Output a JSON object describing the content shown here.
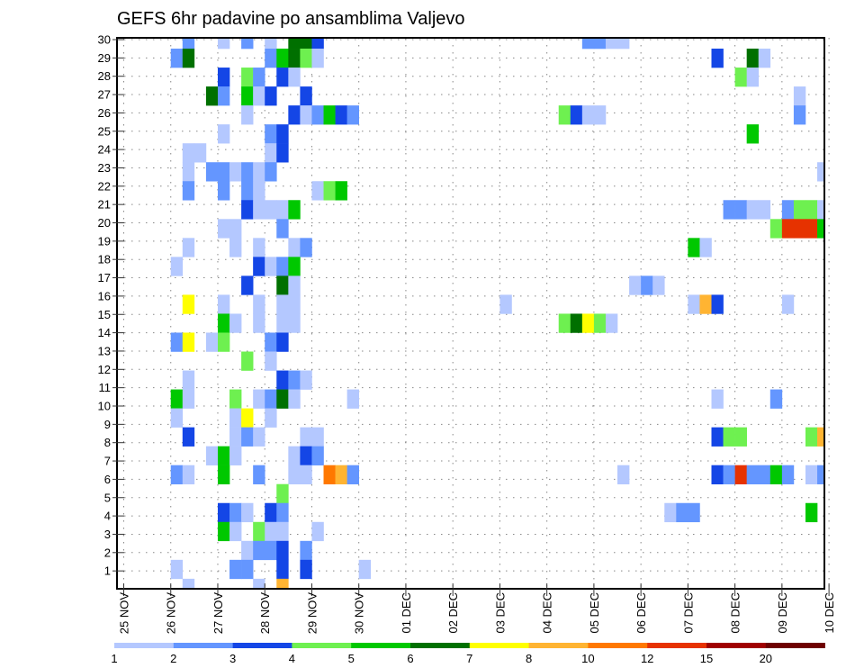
{
  "chart_data": {
    "type": "heatmap",
    "title": "GEFS 6hr padavine po ansamblima Valjevo",
    "xlabel": "",
    "ylabel": "",
    "x_unit": "6-hour step from 25 NOV",
    "x_tick_labels": [
      "25 NOV",
      "26 NOV",
      "27 NOV",
      "28 NOV",
      "29 NOV",
      "30 NOV",
      "01 DEC",
      "02 DEC",
      "03 DEC",
      "04 DEC",
      "05 DEC",
      "06 DEC",
      "07 DEC",
      "08 DEC",
      "09 DEC",
      "10 DEC"
    ],
    "y_tick_labels": [
      "1",
      "2",
      "3",
      "4",
      "5",
      "6",
      "7",
      "8",
      "9",
      "10",
      "11",
      "12",
      "13",
      "14",
      "15",
      "16",
      "17",
      "18",
      "19",
      "20",
      "21",
      "22",
      "23",
      "24",
      "25",
      "26",
      "27",
      "28",
      "29",
      "30"
    ],
    "xlim": [
      0,
      60
    ],
    "ylim": [
      1,
      30
    ],
    "grid": true,
    "colorbar": {
      "placement": "bottom",
      "levels": [
        "1",
        "2",
        "3",
        "4",
        "5",
        "6",
        "7",
        "8",
        "10",
        "12",
        "15",
        "20"
      ],
      "thresholds": [
        1,
        2,
        3,
        4,
        5,
        6,
        7,
        8,
        10,
        12,
        15,
        20
      ],
      "colors": [
        "#b4c8ff",
        "#6496ff",
        "#1446e6",
        "#6ef050",
        "#00c800",
        "#007000",
        "#ffff00",
        "#ffb432",
        "#ff7800",
        "#e63200",
        "#a00000",
        "#6e0000"
      ]
    },
    "value_note": "cell value = lower bound of colour class (mm)",
    "rows": [
      {
        "member": 30,
        "cells": [
          [
            5,
            2
          ],
          [
            8,
            1
          ],
          [
            10,
            2
          ],
          [
            12,
            1
          ],
          [
            14,
            6
          ],
          [
            15,
            6
          ],
          [
            16,
            3
          ],
          [
            39,
            2
          ],
          [
            40,
            2
          ],
          [
            41,
            1
          ],
          [
            42,
            1
          ]
        ]
      },
      {
        "member": 29,
        "cells": [
          [
            4,
            2
          ],
          [
            5,
            6
          ],
          [
            12,
            2
          ],
          [
            13,
            5
          ],
          [
            14,
            6
          ],
          [
            15,
            4
          ],
          [
            16,
            1
          ],
          [
            50,
            3
          ],
          [
            53,
            6
          ],
          [
            54,
            1
          ]
        ]
      },
      {
        "member": 28,
        "cells": [
          [
            8,
            3
          ],
          [
            10,
            4
          ],
          [
            11,
            2
          ],
          [
            13,
            3
          ],
          [
            14,
            1
          ],
          [
            52,
            4
          ],
          [
            53,
            1
          ]
        ]
      },
      {
        "member": 27,
        "cells": [
          [
            7,
            6
          ],
          [
            8,
            2
          ],
          [
            10,
            5
          ],
          [
            11,
            1
          ],
          [
            12,
            3
          ],
          [
            15,
            3
          ],
          [
            57,
            1
          ]
        ]
      },
      {
        "member": 26,
        "cells": [
          [
            10,
            1
          ],
          [
            14,
            3
          ],
          [
            15,
            1
          ],
          [
            16,
            2
          ],
          [
            17,
            5
          ],
          [
            18,
            3
          ],
          [
            19,
            2
          ],
          [
            37,
            4
          ],
          [
            38,
            3
          ],
          [
            39,
            1
          ],
          [
            40,
            1
          ],
          [
            57,
            2
          ]
        ]
      },
      {
        "member": 25,
        "cells": [
          [
            8,
            1
          ],
          [
            12,
            2
          ],
          [
            13,
            3
          ],
          [
            53,
            5
          ]
        ]
      },
      {
        "member": 24,
        "cells": [
          [
            5,
            1
          ],
          [
            6,
            1
          ],
          [
            12,
            1
          ],
          [
            13,
            3
          ]
        ]
      },
      {
        "member": 23,
        "cells": [
          [
            5,
            1
          ],
          [
            7,
            2
          ],
          [
            8,
            2
          ],
          [
            9,
            1
          ],
          [
            10,
            2
          ],
          [
            11,
            1
          ],
          [
            12,
            2
          ],
          [
            59,
            1
          ]
        ]
      },
      {
        "member": 22,
        "cells": [
          [
            5,
            2
          ],
          [
            8,
            2
          ],
          [
            10,
            2
          ],
          [
            11,
            1
          ],
          [
            16,
            1
          ],
          [
            17,
            4
          ],
          [
            18,
            5
          ]
        ]
      },
      {
        "member": 21,
        "cells": [
          [
            10,
            3
          ],
          [
            11,
            1
          ],
          [
            12,
            1
          ],
          [
            13,
            1
          ],
          [
            14,
            5
          ],
          [
            51,
            2
          ],
          [
            52,
            2
          ],
          [
            53,
            1
          ],
          [
            54,
            1
          ],
          [
            56,
            2
          ],
          [
            57,
            4
          ],
          [
            58,
            4
          ],
          [
            59,
            1
          ]
        ]
      },
      {
        "member": 20,
        "cells": [
          [
            8,
            1
          ],
          [
            9,
            1
          ],
          [
            13,
            2
          ],
          [
            55,
            4
          ],
          [
            56,
            12
          ],
          [
            57,
            12
          ],
          [
            58,
            12
          ],
          [
            59,
            5
          ]
        ]
      },
      {
        "member": 19,
        "cells": [
          [
            5,
            1
          ],
          [
            9,
            1
          ],
          [
            11,
            1
          ],
          [
            14,
            1
          ],
          [
            15,
            2
          ],
          [
            48,
            5
          ],
          [
            49,
            1
          ]
        ]
      },
      {
        "member": 18,
        "cells": [
          [
            4,
            1
          ],
          [
            11,
            3
          ],
          [
            12,
            1
          ],
          [
            13,
            2
          ],
          [
            14,
            5
          ]
        ]
      },
      {
        "member": 17,
        "cells": [
          [
            10,
            3
          ],
          [
            13,
            6
          ],
          [
            14,
            1
          ],
          [
            43,
            1
          ],
          [
            44,
            2
          ],
          [
            45,
            1
          ]
        ]
      },
      {
        "member": 16,
        "cells": [
          [
            5,
            7
          ],
          [
            8,
            1
          ],
          [
            11,
            1
          ],
          [
            13,
            1
          ],
          [
            14,
            1
          ],
          [
            32,
            1
          ],
          [
            48,
            1
          ],
          [
            49,
            8
          ],
          [
            50,
            3
          ],
          [
            56,
            1
          ]
        ]
      },
      {
        "member": 15,
        "cells": [
          [
            8,
            5
          ],
          [
            9,
            1
          ],
          [
            11,
            1
          ],
          [
            13,
            1
          ],
          [
            14,
            1
          ],
          [
            37,
            4
          ],
          [
            38,
            6
          ],
          [
            39,
            7
          ],
          [
            40,
            4
          ],
          [
            41,
            1
          ]
        ]
      },
      {
        "member": 14,
        "cells": [
          [
            4,
            2
          ],
          [
            5,
            7
          ],
          [
            7,
            1
          ],
          [
            8,
            4
          ],
          [
            12,
            2
          ],
          [
            13,
            3
          ]
        ]
      },
      {
        "member": 13,
        "cells": [
          [
            10,
            4
          ],
          [
            12,
            1
          ]
        ]
      },
      {
        "member": 12,
        "cells": [
          [
            5,
            1
          ],
          [
            13,
            3
          ],
          [
            14,
            2
          ],
          [
            15,
            1
          ]
        ]
      },
      {
        "member": 11,
        "cells": [
          [
            4,
            5
          ],
          [
            5,
            1
          ],
          [
            9,
            4
          ],
          [
            11,
            1
          ],
          [
            12,
            2
          ],
          [
            13,
            6
          ],
          [
            14,
            1
          ],
          [
            19,
            1
          ],
          [
            50,
            1
          ],
          [
            55,
            2
          ]
        ]
      },
      {
        "member": 10,
        "cells": [
          [
            4,
            1
          ],
          [
            9,
            1
          ],
          [
            10,
            7
          ],
          [
            12,
            1
          ]
        ]
      },
      {
        "member": 9,
        "cells": [
          [
            5,
            3
          ],
          [
            9,
            1
          ],
          [
            10,
            2
          ],
          [
            11,
            1
          ],
          [
            15,
            1
          ],
          [
            16,
            1
          ],
          [
            50,
            3
          ],
          [
            51,
            4
          ],
          [
            52,
            4
          ],
          [
            58,
            4
          ],
          [
            59,
            8
          ]
        ]
      },
      {
        "member": 8,
        "cells": [
          [
            7,
            1
          ],
          [
            8,
            5
          ],
          [
            9,
            1
          ],
          [
            14,
            1
          ],
          [
            15,
            3
          ],
          [
            16,
            2
          ]
        ]
      },
      {
        "member": 7,
        "cells": [
          [
            4,
            2
          ],
          [
            5,
            1
          ],
          [
            8,
            5
          ],
          [
            11,
            2
          ],
          [
            14,
            1
          ],
          [
            15,
            1
          ],
          [
            17,
            10
          ],
          [
            18,
            8
          ],
          [
            19,
            2
          ],
          [
            42,
            1
          ],
          [
            50,
            3
          ],
          [
            51,
            2
          ],
          [
            52,
            12
          ],
          [
            53,
            2
          ],
          [
            54,
            2
          ],
          [
            55,
            5
          ],
          [
            56,
            2
          ],
          [
            58,
            1
          ],
          [
            59,
            2
          ]
        ]
      },
      {
        "member": 6,
        "cells": [
          [
            13,
            4
          ]
        ]
      },
      {
        "member": 5,
        "cells": [
          [
            8,
            3
          ],
          [
            9,
            2
          ],
          [
            10,
            1
          ],
          [
            12,
            3
          ],
          [
            13,
            2
          ],
          [
            46,
            1
          ],
          [
            47,
            2
          ],
          [
            48,
            2
          ],
          [
            58,
            5
          ]
        ]
      },
      {
        "member": 4,
        "cells": [
          [
            8,
            5
          ],
          [
            9,
            1
          ],
          [
            11,
            4
          ],
          [
            12,
            1
          ],
          [
            13,
            1
          ],
          [
            16,
            1
          ]
        ]
      },
      {
        "member": 3,
        "cells": [
          [
            10,
            1
          ],
          [
            11,
            2
          ],
          [
            12,
            2
          ],
          [
            13,
            3
          ],
          [
            15,
            2
          ]
        ]
      },
      {
        "member": 2,
        "cells": [
          [
            4,
            1
          ],
          [
            9,
            2
          ],
          [
            10,
            2
          ],
          [
            13,
            3
          ],
          [
            15,
            3
          ],
          [
            20,
            1
          ]
        ]
      },
      {
        "member": 1,
        "cells": [
          [
            5,
            1
          ],
          [
            11,
            1
          ],
          [
            13,
            8
          ]
        ]
      }
    ]
  }
}
